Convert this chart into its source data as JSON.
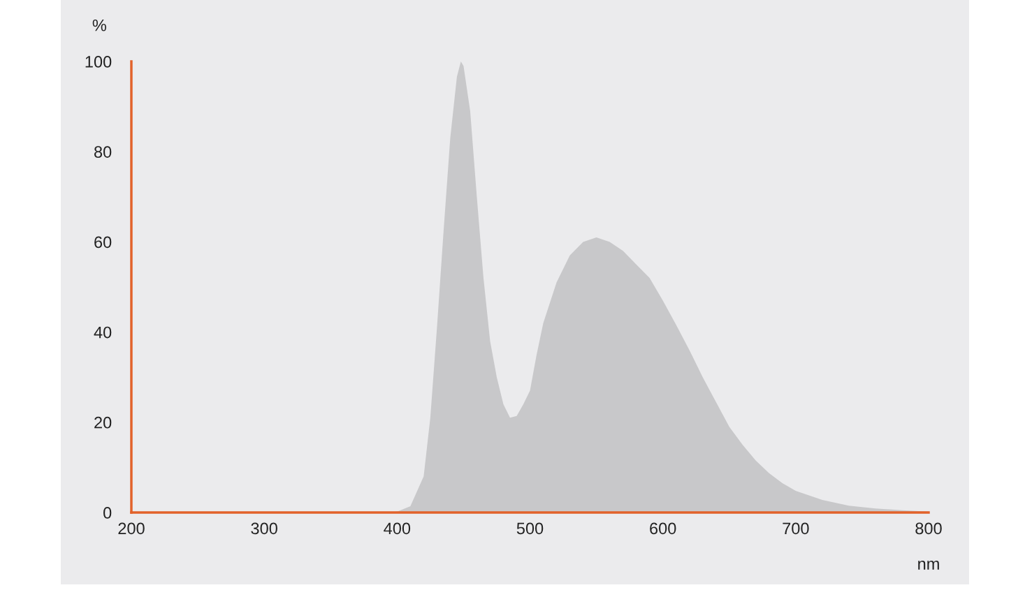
{
  "chart_data": {
    "type": "area",
    "xlabel": "nm",
    "ylabel": "%",
    "x": [
      200,
      390,
      400,
      410,
      420,
      425,
      430,
      435,
      440,
      445,
      448,
      450,
      455,
      460,
      465,
      470,
      475,
      480,
      485,
      490,
      495,
      500,
      505,
      510,
      520,
      530,
      540,
      550,
      560,
      570,
      580,
      590,
      600,
      610,
      620,
      630,
      640,
      650,
      660,
      670,
      680,
      690,
      700,
      720,
      740,
      760,
      780,
      800
    ],
    "values": [
      0,
      0,
      0.2,
      1.4,
      8,
      21,
      41,
      62.5,
      83,
      96.6,
      100,
      99,
      89,
      70,
      52,
      38,
      30,
      24,
      21,
      21.4,
      24,
      27,
      35,
      42,
      51,
      57,
      60,
      61,
      60,
      58,
      55,
      52,
      47,
      41.6,
      36,
      30,
      24.5,
      19,
      15,
      11.5,
      8.7,
      6.5,
      4.8,
      2.8,
      1.5,
      0.9,
      0.5,
      0.2
    ],
    "color": "#c8c8ca",
    "xlim": [
      200,
      800
    ],
    "ylim": [
      0,
      100
    ],
    "xticks": [
      200,
      300,
      400,
      500,
      600,
      700,
      800
    ],
    "yticks": [
      0,
      20,
      40,
      60,
      80,
      100
    ],
    "grid": false,
    "legend": false
  }
}
